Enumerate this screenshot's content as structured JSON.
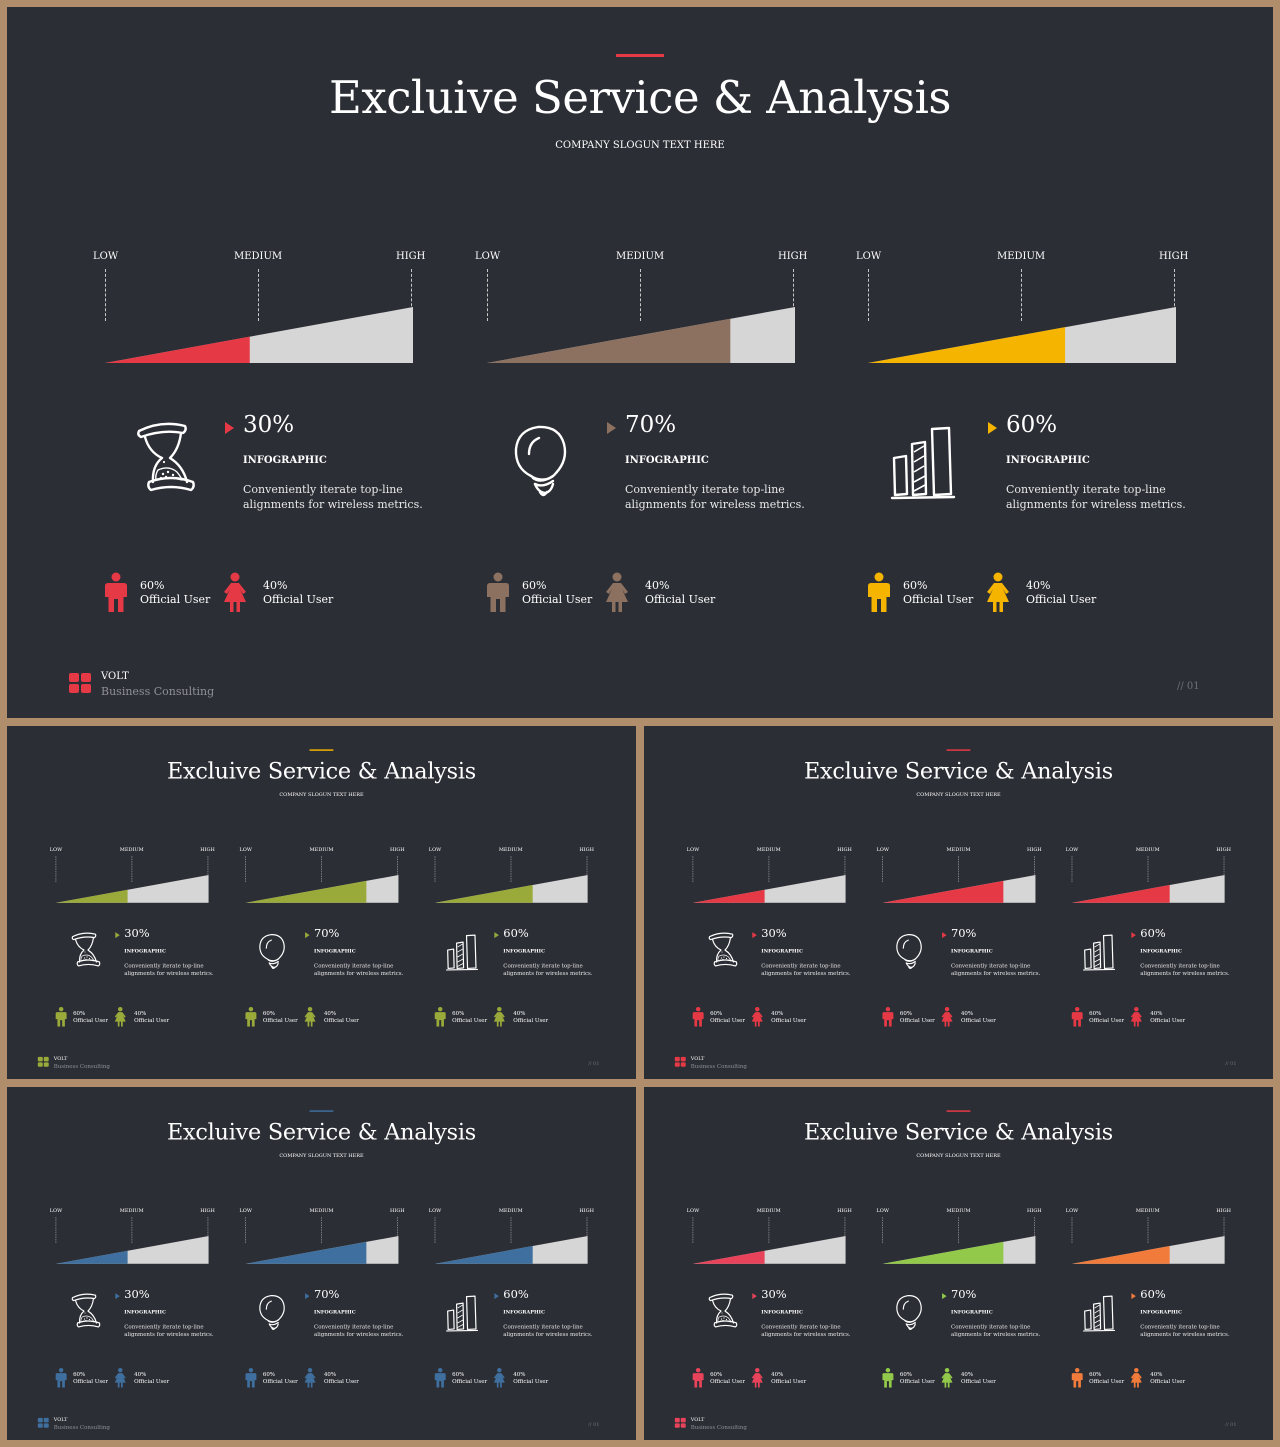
{
  "common": {
    "title": "Excluive Service & Analysis",
    "slogan": "COMPANY SLOGUN TEXT HERE",
    "scale_labels": [
      "LOW",
      "MEDIUM",
      "HIGH"
    ],
    "infographic_label": "INFOGRAPHIC",
    "description": "Conveniently iterate top-line alignments for wireless metrics.",
    "male_pct": "60%",
    "female_pct": "40%",
    "user_label": "Official User",
    "brand": "VOLT",
    "brand_sub": "Business  Consulting",
    "page_number": "// 01",
    "bar_gray": "#d6d6d6"
  },
  "slides": [
    {
      "id": "main",
      "accent": "#e63946",
      "columns": [
        {
          "pct": "30%",
          "fill": 0.47,
          "icon": "hourglass-icon",
          "color": "#e63946"
        },
        {
          "pct": "70%",
          "fill": 0.79,
          "icon": "lightbulb-icon",
          "color": "#8c7160"
        },
        {
          "pct": "60%",
          "fill": 0.64,
          "icon": "bar-chart-icon",
          "color": "#f4b400"
        }
      ]
    },
    {
      "id": "olive",
      "accent": "#f4b400",
      "columns": [
        {
          "pct": "30%",
          "fill": 0.47,
          "icon": "hourglass-icon",
          "color": "#9aaa3a"
        },
        {
          "pct": "70%",
          "fill": 0.79,
          "icon": "lightbulb-icon",
          "color": "#9aaa3a"
        },
        {
          "pct": "60%",
          "fill": 0.64,
          "icon": "bar-chart-icon",
          "color": "#9aaa3a"
        }
      ]
    },
    {
      "id": "red",
      "accent": "#e63946",
      "columns": [
        {
          "pct": "30%",
          "fill": 0.47,
          "icon": "hourglass-icon",
          "color": "#e63946"
        },
        {
          "pct": "70%",
          "fill": 0.79,
          "icon": "lightbulb-icon",
          "color": "#e63946"
        },
        {
          "pct": "60%",
          "fill": 0.64,
          "icon": "bar-chart-icon",
          "color": "#e63946"
        }
      ]
    },
    {
      "id": "blue",
      "accent": "#3e6f9e",
      "columns": [
        {
          "pct": "30%",
          "fill": 0.47,
          "icon": "hourglass-icon",
          "color": "#3e6f9e"
        },
        {
          "pct": "70%",
          "fill": 0.79,
          "icon": "lightbulb-icon",
          "color": "#3e6f9e"
        },
        {
          "pct": "60%",
          "fill": 0.64,
          "icon": "bar-chart-icon",
          "color": "#3e6f9e"
        }
      ]
    },
    {
      "id": "mixed",
      "accent": "#e63946",
      "columns": [
        {
          "pct": "30%",
          "fill": 0.47,
          "icon": "hourglass-icon",
          "color": "#e8435a"
        },
        {
          "pct": "70%",
          "fill": 0.79,
          "icon": "lightbulb-icon",
          "color": "#93c94a"
        },
        {
          "pct": "60%",
          "fill": 0.64,
          "icon": "bar-chart-icon",
          "color": "#f07b3a"
        }
      ]
    }
  ]
}
